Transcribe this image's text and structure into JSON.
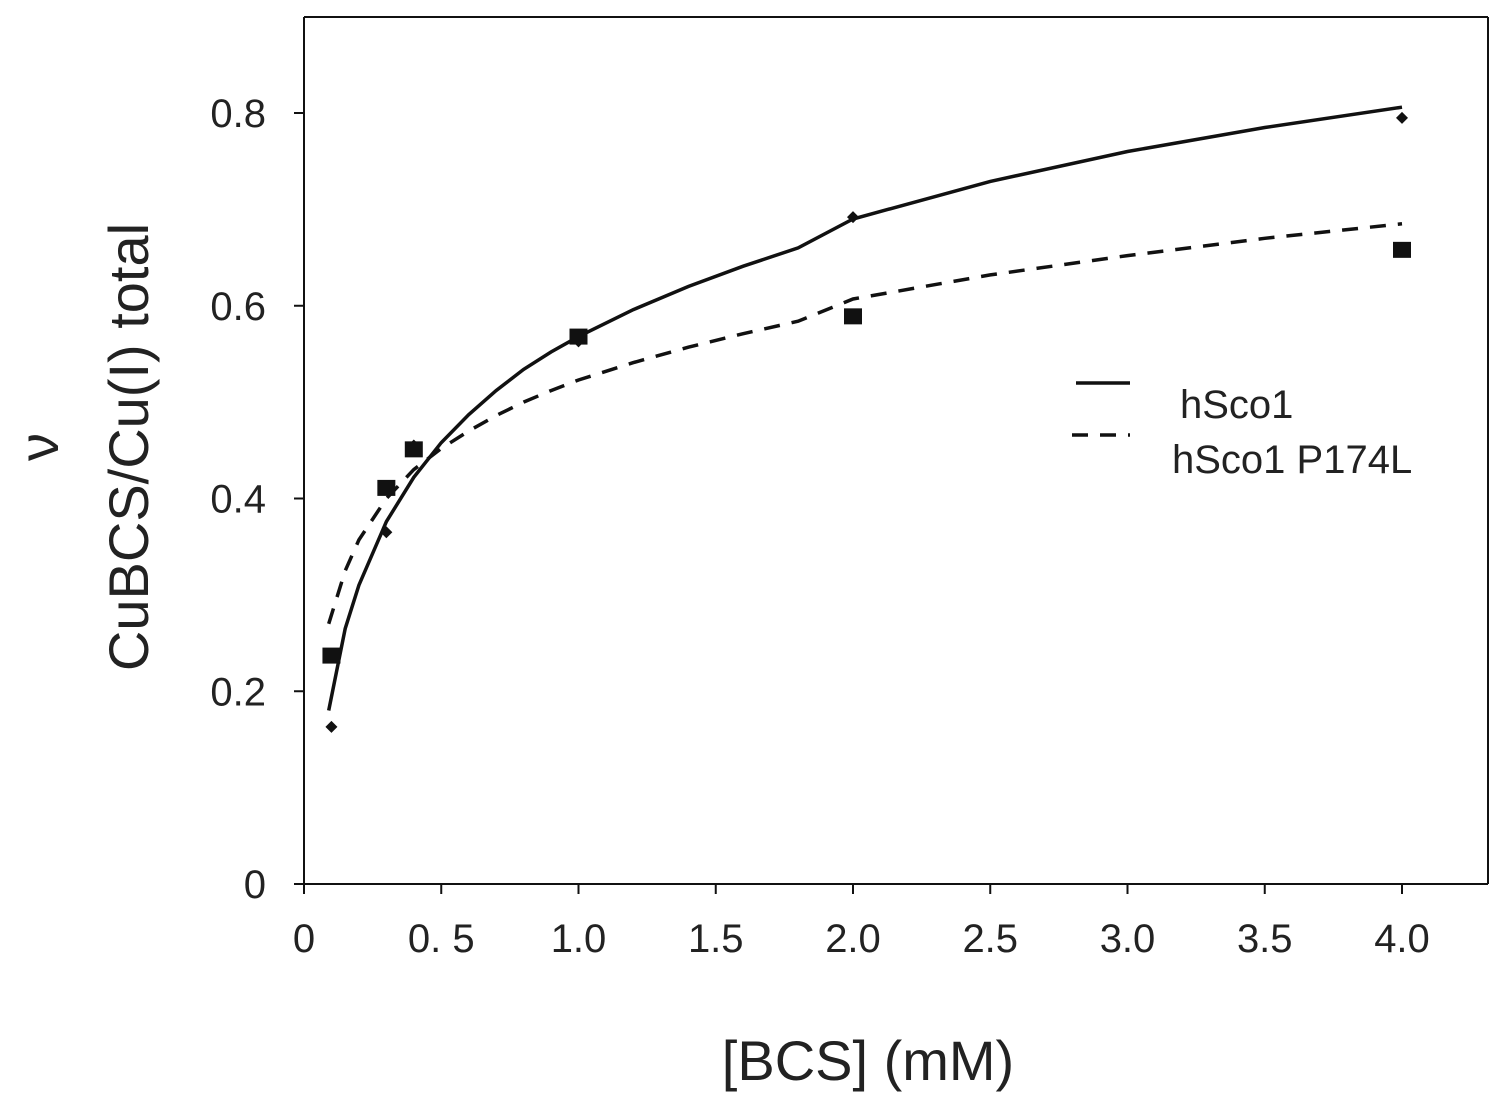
{
  "chart_data": {
    "type": "scatter",
    "title": "",
    "xlabel": "[BCS] (mM)",
    "ylabel": "CuBCS/Cu(I) total",
    "ylabel_symbol": "ν",
    "xlim": [
      0,
      4.3
    ],
    "ylim": [
      0,
      0.9
    ],
    "x_ticks": [
      {
        "value": 0,
        "label": "0"
      },
      {
        "value": 0.5,
        "label": "0. 5"
      },
      {
        "value": 1.0,
        "label": "1.0"
      },
      {
        "value": 1.5,
        "label": "1.5"
      },
      {
        "value": 2.0,
        "label": "2.0"
      },
      {
        "value": 2.5,
        "label": "2.5"
      },
      {
        "value": 3.0,
        "label": "3.0"
      },
      {
        "value": 3.5,
        "label": "3.5"
      },
      {
        "value": 4.0,
        "label": "4.0"
      }
    ],
    "y_ticks": [
      {
        "value": 0,
        "label": "0"
      },
      {
        "value": 0.2,
        "label": "0.2"
      },
      {
        "value": 0.4,
        "label": "0.4"
      },
      {
        "value": 0.6,
        "label": "0.6"
      },
      {
        "value": 0.8,
        "label": "0.8"
      }
    ],
    "grid": false,
    "legend_position": "right",
    "series": [
      {
        "name": "hSco1",
        "marker": "diamond",
        "line_style": "solid",
        "x": [
          0.1,
          0.3,
          0.4,
          1.0,
          2.0,
          4.0
        ],
        "y": [
          0.163,
          0.365,
          0.455,
          0.563,
          0.692,
          0.795
        ],
        "fit_x": [
          0.09,
          0.15,
          0.2,
          0.3,
          0.4,
          0.5,
          0.6,
          0.7,
          0.8,
          0.9,
          1.0,
          1.2,
          1.4,
          1.6,
          1.8,
          2.0,
          2.5,
          3.0,
          3.5,
          4.0
        ],
        "fit_y": [
          0.18,
          0.265,
          0.31,
          0.376,
          0.422,
          0.458,
          0.487,
          0.512,
          0.534,
          0.552,
          0.568,
          0.596,
          0.62,
          0.641,
          0.66,
          0.69,
          0.729,
          0.76,
          0.785,
          0.806
        ]
      },
      {
        "name": "hSco1 P174L",
        "marker": "square",
        "line_style": "dashed",
        "x": [
          0.1,
          0.3,
          0.4,
          1.0,
          2.0,
          4.0
        ],
        "y": [
          0.237,
          0.411,
          0.451,
          0.568,
          0.589,
          0.658
        ],
        "fit_x": [
          0.09,
          0.15,
          0.2,
          0.3,
          0.4,
          0.5,
          0.6,
          0.7,
          0.8,
          0.9,
          1.0,
          1.2,
          1.4,
          1.6,
          1.8,
          2.0,
          2.5,
          3.0,
          3.5,
          4.0
        ],
        "fit_y": [
          0.27,
          0.325,
          0.357,
          0.4,
          0.43,
          0.452,
          0.47,
          0.486,
          0.5,
          0.512,
          0.523,
          0.541,
          0.557,
          0.571,
          0.584,
          0.607,
          0.632,
          0.652,
          0.67,
          0.685
        ]
      }
    ]
  }
}
